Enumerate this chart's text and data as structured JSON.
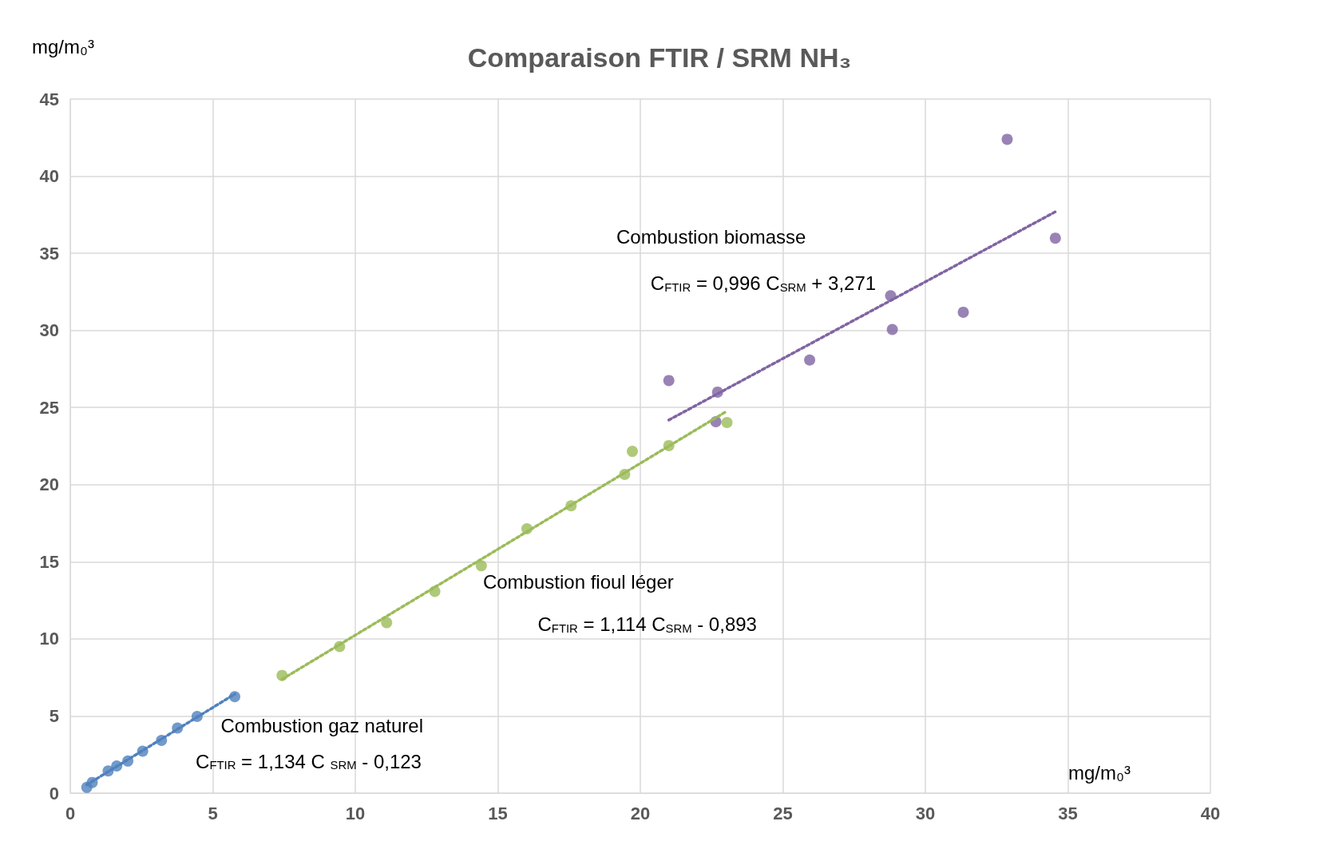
{
  "chart_data": {
    "type": "scatter",
    "title": "Comparaison FTIR / SRM NH₃",
    "xlabel": "mg/m₀³",
    "ylabel": "mg/m₀³",
    "xlim": [
      0,
      40
    ],
    "xticks": [
      0,
      5,
      10,
      15,
      20,
      25,
      30,
      35,
      40
    ],
    "ylim": [
      0,
      45
    ],
    "yticks": [
      0,
      5,
      10,
      15,
      20,
      25,
      30,
      35,
      40,
      45
    ],
    "grid": true,
    "marker": "circle",
    "series": [
      {
        "color": "#4f81bd",
        "x": [
          0.58,
          0.77,
          1.33,
          1.63,
          2.02,
          2.54,
          3.2,
          3.76,
          4.45,
          5.77
        ],
        "values": [
          0.37,
          0.69,
          1.44,
          1.76,
          2.08,
          2.72,
          3.42,
          4.22,
          4.97,
          6.25
        ]
      },
      {
        "color": "#9bbb59",
        "x": [
          7.43,
          9.45,
          11.1,
          12.79,
          14.42,
          16.02,
          17.57,
          19.45,
          19.72,
          21.0,
          23.04
        ],
        "values": [
          7.63,
          9.5,
          11.05,
          13.08,
          14.74,
          17.14,
          18.63,
          20.66,
          22.16,
          22.53,
          24.03
        ]
      },
      {
        "color": "#8064a2",
        "x": [
          21.0,
          22.65,
          22.71,
          25.94,
          28.78,
          28.84,
          31.33,
          32.87,
          34.56
        ],
        "values": [
          26.75,
          24.08,
          26.0,
          28.08,
          32.25,
          30.06,
          31.18,
          42.39,
          35.98
        ]
      },
      {
        "type": "line",
        "color": "#4f81bd",
        "line_style": "dotted",
        "marker": "none",
        "x": [
          0.58,
          5.77
        ],
        "values": [
          0.54,
          6.42
        ]
      },
      {
        "type": "line",
        "color": "#9bbb59",
        "line_style": "dotted",
        "marker": "none",
        "x": [
          7.43,
          23.04
        ],
        "values": [
          7.38,
          24.77
        ]
      },
      {
        "type": "line",
        "color": "#8064a2",
        "line_style": "dotted",
        "marker": "none",
        "x": [
          21.0,
          34.56
        ],
        "values": [
          24.19,
          37.69
        ]
      }
    ],
    "annotations": [
      "Combustion biomasse",
      "C$_{FTIR}$ = 0,996 C$_{SRM}$ + 3,271",
      "Combustion fioul léger",
      "C$_{FTIR}$ = 1,114 C$_{SRM}$ - 0,893",
      "Combustion gaz naturel",
      "C$_{FTIR}$ = 1,134 C $_{SRM}$ - 0,123"
    ]
  }
}
